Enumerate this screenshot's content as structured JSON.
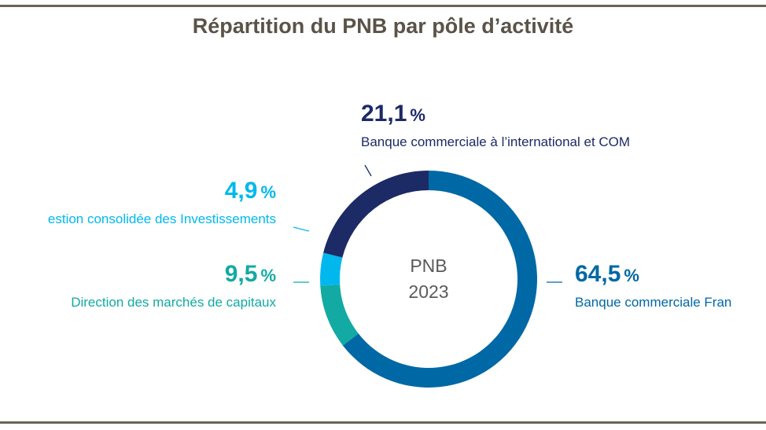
{
  "chart_data": {
    "type": "pie",
    "title": "Répartition du PNB par pôle d’activité",
    "center_label": [
      "PNB",
      "2023"
    ],
    "unit": "%",
    "slices": [
      {
        "id": "bcf",
        "label": "Banque commerciale Fran",
        "value": 64.5,
        "value_text": "64,5",
        "color": "#0068a5"
      },
      {
        "id": "dmc",
        "label": "Direction des marchés de capitaux",
        "value": 9.5,
        "value_text": "9,5",
        "color": "#12aaa3"
      },
      {
        "id": "gci",
        "label": "estion consolidée des Investissements",
        "value": 4.9,
        "value_text": "4,9",
        "color": "#00b8ee"
      },
      {
        "id": "bci",
        "label": "Banque commerciale à l’international et COM",
        "value": 21.1,
        "value_text": "21,1",
        "color": "#1c2a66"
      }
    ]
  }
}
